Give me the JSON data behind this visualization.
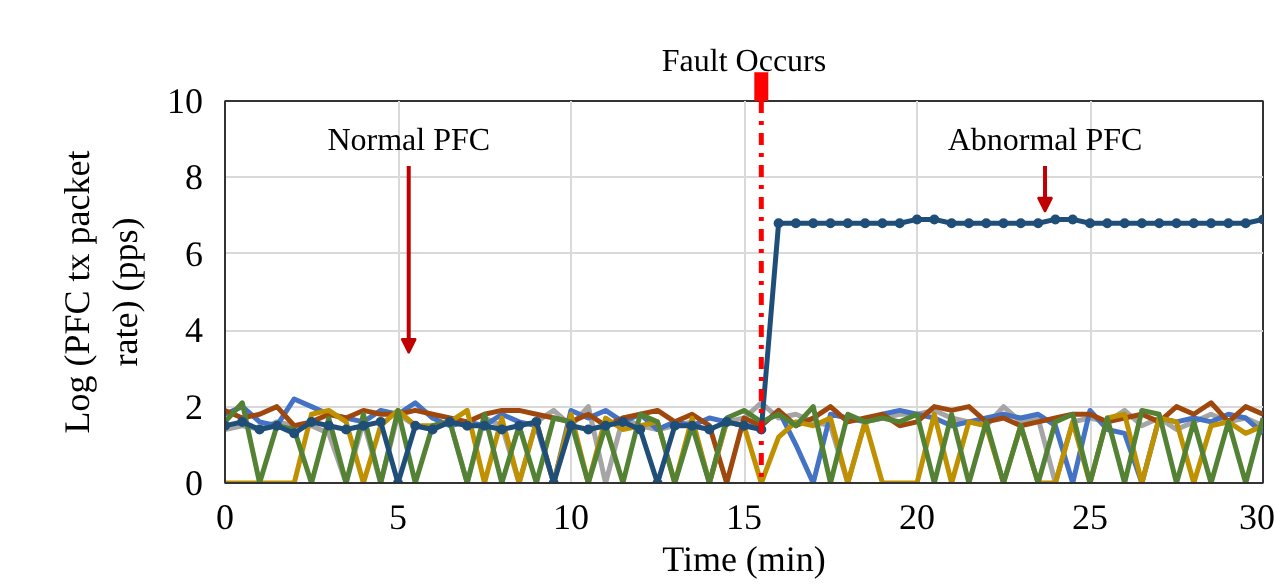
{
  "chart_data": {
    "type": "line",
    "xlabel": "Time (min)",
    "ylabel": "Log (PFC tx packet rate) (pps)",
    "x": [
      0,
      0.5,
      1,
      1.5,
      2,
      2.5,
      3,
      3.5,
      4,
      4.5,
      5,
      5.5,
      6,
      6.5,
      7,
      7.5,
      8,
      8.5,
      9,
      9.5,
      10,
      10.5,
      11,
      11.5,
      12,
      12.5,
      13,
      13.5,
      14,
      14.5,
      15,
      15.5,
      16,
      16.5,
      17,
      17.5,
      18,
      18.5,
      19,
      19.5,
      20,
      20.5,
      21,
      21.5,
      22,
      22.5,
      23,
      23.5,
      24,
      24.5,
      25,
      25.5,
      26,
      26.5,
      27,
      27.5,
      28,
      28.5,
      29,
      29.5,
      30
    ],
    "series": [
      {
        "color": "#a5a5a5",
        "values": [
          1.4,
          1.5,
          1.4,
          1.6,
          1.5,
          1.5,
          1.3,
          0,
          1.6,
          0,
          1.8,
          1.5,
          1.4,
          1.6,
          0,
          1.7,
          1.5,
          0,
          1.6,
          1.9,
          1.5,
          2.0,
          0,
          1.7,
          1.5,
          1.4,
          1.5,
          1.6,
          0,
          1.6,
          1.7,
          2.1,
          1.7,
          1.8,
          1.6,
          1.5,
          0,
          1.6,
          1.7,
          1.8,
          1.8,
          1.9,
          1.7,
          1.6,
          1.5,
          2.0,
          1.6,
          1.7,
          0,
          1.6,
          1.7,
          1.6,
          1.9,
          1.5,
          1.7,
          1.4,
          1.6,
          1.8,
          1.6,
          1.7,
          1.5
        ]
      },
      {
        "color": "#4472c4",
        "values": [
          1.8,
          2.0,
          1.6,
          1.5,
          2.2,
          2.0,
          1.8,
          1.7,
          1.6,
          1.9,
          1.8,
          2.1,
          1.7,
          1.5,
          1.6,
          1.5,
          1.8,
          1.6,
          1.5,
          0,
          1.9,
          1.7,
          1.9,
          1.6,
          1.8,
          1.4,
          1.6,
          1.5,
          1.7,
          1.6,
          1.5,
          1.5,
          1.9,
          1.0,
          0,
          1.8,
          1.7,
          1.6,
          1.8,
          1.9,
          1.8,
          1.7,
          1.5,
          1.6,
          1.7,
          1.8,
          1.7,
          1.8,
          1.5,
          0,
          1.9,
          1.4,
          1.3,
          0,
          1.7,
          1.6,
          1.7,
          1.6,
          1.8,
          1.7,
          1.3
        ]
      },
      {
        "color": "#9e480e",
        "values": [
          1.9,
          1.7,
          1.8,
          2.0,
          1.5,
          1.6,
          1.8,
          1.7,
          1.9,
          1.8,
          1.8,
          1.9,
          1.8,
          1.7,
          1.6,
          1.8,
          1.9,
          1.9,
          1.8,
          1.7,
          1.6,
          1.8,
          1.5,
          1.7,
          1.8,
          1.9,
          1.6,
          1.8,
          1.5,
          0,
          1.7,
          1.5,
          1.9,
          1.5,
          1.7,
          2.0,
          1.6,
          1.7,
          1.8,
          1.5,
          1.6,
          2.0,
          1.9,
          2.0,
          1.6,
          1.7,
          1.5,
          1.6,
          1.7,
          1.8,
          1.8,
          1.6,
          1.7,
          1.8,
          1.6,
          2.0,
          1.8,
          2.1,
          1.6,
          2.0,
          1.8
        ]
      },
      {
        "color": "#bf9000",
        "values": [
          0,
          0,
          0,
          0,
          0,
          1.8,
          1.9,
          1.6,
          0,
          1.5,
          1.9,
          1.5,
          1.5,
          1.6,
          1.9,
          0,
          1.7,
          0,
          1.6,
          0,
          1.8,
          0,
          1.7,
          1.4,
          1.5,
          1.6,
          0,
          1.7,
          0,
          1.6,
          1.5,
          0,
          1.2,
          1.6,
          1.5,
          1.7,
          0,
          1.6,
          0,
          0,
          0,
          1.8,
          0,
          1.6,
          1.5,
          0,
          1.5,
          0,
          0,
          1.6,
          0,
          1.7,
          1.8,
          0,
          1.7,
          1.6,
          0,
          1.5,
          1.6,
          1.3,
          1.5
        ]
      },
      {
        "color": "#548235",
        "values": [
          1.6,
          2.1,
          0,
          1.5,
          1.4,
          0,
          1.7,
          0,
          1.8,
          0,
          1.9,
          0,
          1.5,
          1.6,
          0,
          1.8,
          0,
          1.5,
          0,
          1.7,
          1.6,
          0,
          1.5,
          0,
          1.8,
          1.6,
          0,
          1.5,
          0,
          1.7,
          1.9,
          1.6,
          1.8,
          1.5,
          2.0,
          0,
          1.8,
          1.6,
          1.7,
          1.6,
          1.8,
          0,
          1.8,
          0,
          1.6,
          0,
          1.5,
          0,
          1.6,
          1.8,
          0,
          1.7,
          0,
          1.9,
          1.8,
          0,
          1.6,
          0,
          1.6,
          0,
          1.7
        ]
      },
      {
        "color": "#1f4e79",
        "marker": "circle",
        "values": [
          1.5,
          1.6,
          1.4,
          1.5,
          1.3,
          1.6,
          1.5,
          1.4,
          1.5,
          1.6,
          0,
          1.5,
          1.4,
          1.6,
          1.5,
          1.5,
          1.4,
          1.5,
          1.6,
          0,
          1.5,
          1.4,
          1.5,
          1.6,
          1.4,
          0,
          1.5,
          1.5,
          1.4,
          1.6,
          1.5,
          1.4,
          6.8,
          6.8,
          6.8,
          6.8,
          6.8,
          6.8,
          6.8,
          6.8,
          6.9,
          6.9,
          6.8,
          6.8,
          6.8,
          6.8,
          6.8,
          6.8,
          6.9,
          6.9,
          6.8,
          6.8,
          6.8,
          6.8,
          6.8,
          6.8,
          6.8,
          6.8,
          6.8,
          6.8,
          6.9
        ]
      }
    ],
    "xlim": [
      0,
      30
    ],
    "xticks": [
      0,
      5,
      10,
      15,
      20,
      25,
      30
    ],
    "ylim": [
      0,
      10
    ],
    "yticks": [
      0,
      2,
      4,
      6,
      8,
      10
    ],
    "grid": true,
    "marker": "none",
    "line_style": "solid",
    "ref_lines": [
      {
        "axis": "x",
        "value": 15.5,
        "label": "Fault Occurs",
        "color": "#ff0000",
        "line_style": "dashdot"
      }
    ],
    "annotations": [
      "Normal PFC",
      {
        "text": "Abnormal PFC",
        "x": 23.7,
        "y": 7.1
      }
    ]
  }
}
